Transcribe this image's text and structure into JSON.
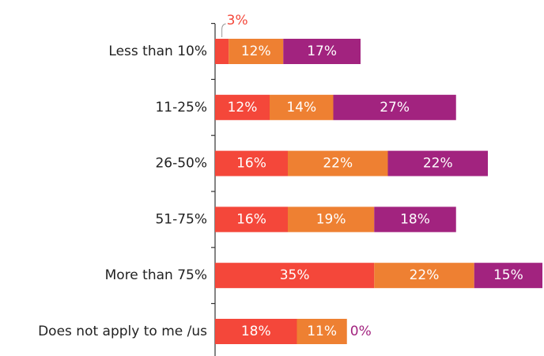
{
  "chart_data": {
    "type": "stacked-bar-horizontal",
    "categories": [
      "Less than 10%",
      "11-25%",
      "26-50%",
      "51-75%",
      "More than 75%",
      "Does not apply to me /us"
    ],
    "series": [
      {
        "color": "#f4473a",
        "values": [
          3,
          12,
          16,
          16,
          35,
          18
        ],
        "value_labels": [
          "3%",
          "12%",
          "16%",
          "16%",
          "35%",
          "18%"
        ]
      },
      {
        "color": "#ee8032",
        "values": [
          12,
          14,
          22,
          19,
          22,
          11
        ],
        "value_labels": [
          "12%",
          "14%",
          "22%",
          "19%",
          "22%",
          "11%"
        ]
      },
      {
        "color": "#a2237f",
        "values": [
          17,
          27,
          22,
          18,
          15,
          0
        ],
        "value_labels": [
          "17%",
          "27%",
          "22%",
          "18%",
          "15%",
          "0%"
        ]
      }
    ]
  }
}
